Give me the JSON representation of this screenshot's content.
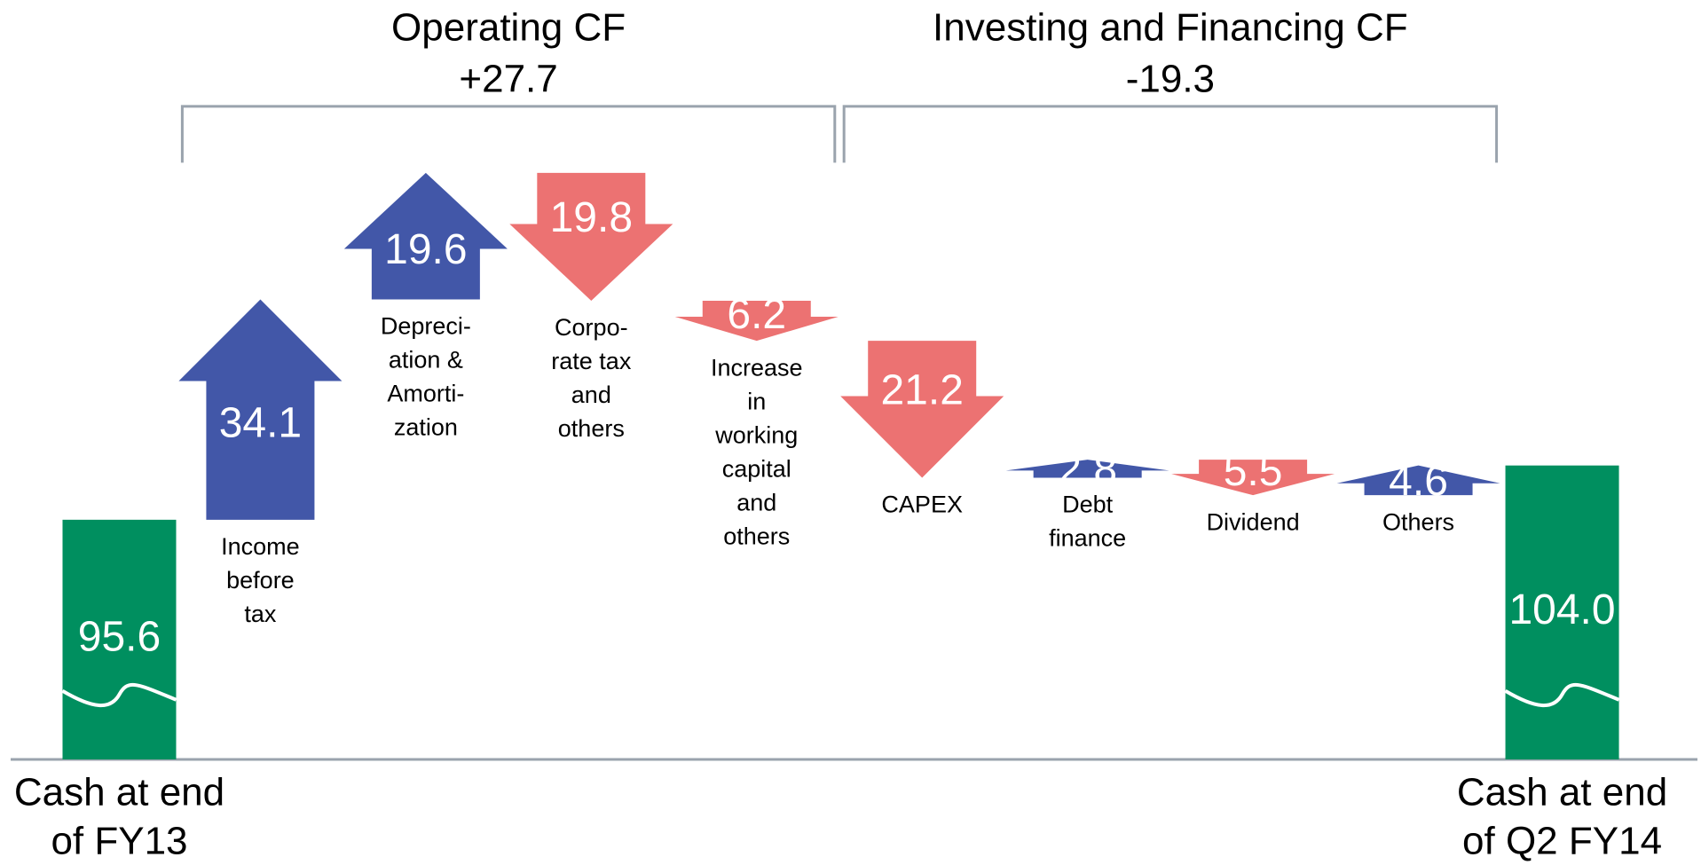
{
  "chart_data": {
    "type": "waterfall",
    "categories": [
      [
        "Cash at end",
        "of FY13"
      ],
      [
        "Income",
        "before",
        "tax"
      ],
      [
        "Depreci-",
        "ation &",
        "Amorti-",
        "zation"
      ],
      [
        "Corpo-",
        "rate tax",
        "and",
        "others"
      ],
      [
        "Increase",
        "in",
        "working",
        "capital",
        "and",
        "others"
      ],
      [
        "CAPEX"
      ],
      [
        "Debt",
        "finance"
      ],
      [
        "Dividend"
      ],
      [
        "Others"
      ],
      [
        "Cash at end",
        "of Q2 FY14"
      ]
    ],
    "measure": [
      "total",
      "relative",
      "relative",
      "relative",
      "relative",
      "relative",
      "relative",
      "relative",
      "relative",
      "total"
    ],
    "values": [
      95.6,
      34.1,
      19.6,
      -19.8,
      -6.2,
      -21.2,
      2.8,
      -5.5,
      4.6,
      104.0
    ],
    "value_labels": [
      "95.6",
      "34.1",
      "19.6",
      "19.8",
      "6.2",
      "21.2",
      "2.8",
      "5.5",
      "4.6",
      "104.0"
    ],
    "colors": {
      "total": "#008f5f",
      "increase": "#4257a8",
      "decrease": "#ec7272"
    },
    "ylim": [
      58.5,
      159.3
    ],
    "groups": [
      {
        "title": "Operating CF",
        "value": 27.7,
        "value_label": "+27.7"
      },
      {
        "title": "Investing and Financing CF",
        "value": -19.3,
        "value_label": "-19.3"
      }
    ]
  }
}
